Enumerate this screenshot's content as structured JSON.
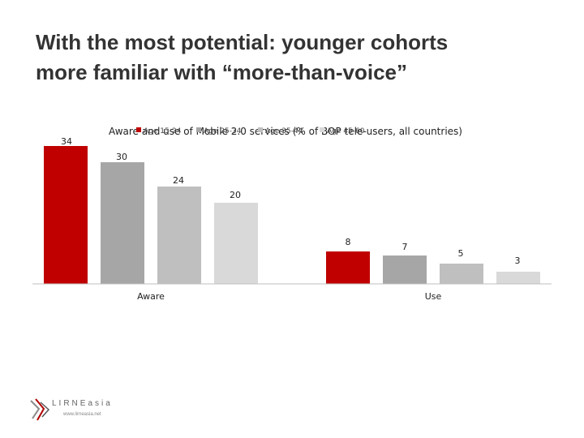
{
  "slide": {
    "title_line1": "With the most potential:  younger cohorts",
    "title_line2": "more familiar with “more-than-voice”"
  },
  "chart_data": {
    "type": "bar",
    "title": "Aware and use of Mobile 2.0 services (% of BOP tele-users, all countries)",
    "categories": [
      "Aware",
      "Use"
    ],
    "series": [
      {
        "name": "Age 15-24",
        "values": [
          34,
          8
        ],
        "color": "#c00000"
      },
      {
        "name": "Age 25-34",
        "values": [
          30,
          7
        ],
        "color": "#a6a6a6"
      },
      {
        "name": "Age 35-44",
        "values": [
          24,
          5
        ],
        "color": "#bfbfbf"
      },
      {
        "name": "Age 45-60",
        "values": [
          20,
          3
        ],
        "color": "#d9d9d9"
      }
    ],
    "ylim": [
      0,
      38
    ],
    "grid": false,
    "legend_position": "top"
  },
  "logo": {
    "name": "LIRNEasia",
    "url": "www.lirneasia.net"
  }
}
